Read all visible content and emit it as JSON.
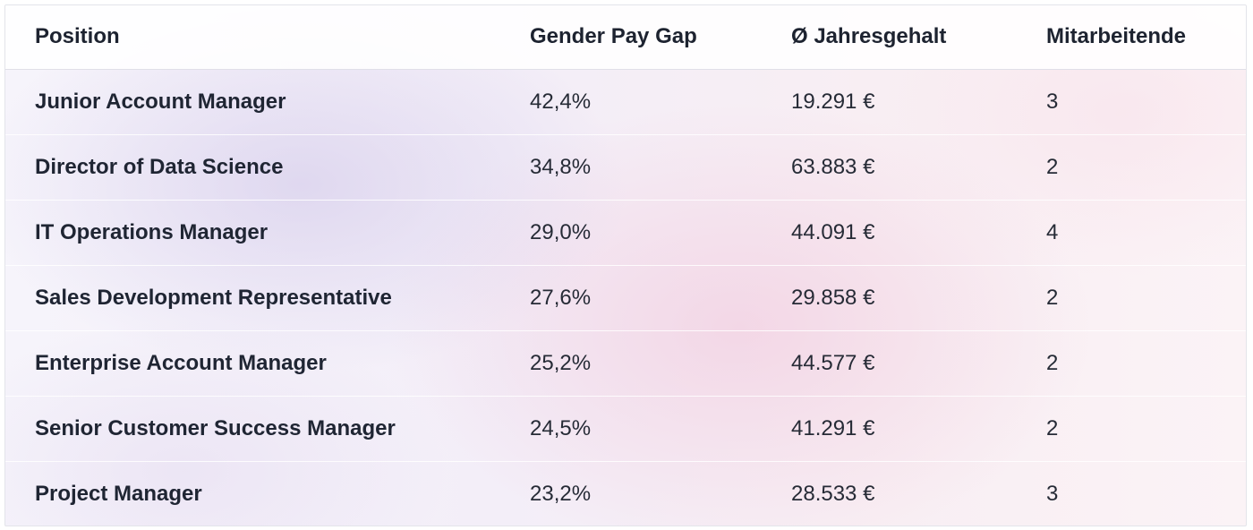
{
  "table": {
    "headers": {
      "position": "Position",
      "gap": "Gender Pay Gap",
      "salary": "Ø Jahresgehalt",
      "count": "Mitarbeitende"
    },
    "rows": [
      {
        "position": "Junior Account Manager",
        "gap": "42,4%",
        "salary": "19.291 €",
        "count": "3"
      },
      {
        "position": "Director of Data Science",
        "gap": "34,8%",
        "salary": "63.883 €",
        "count": "2"
      },
      {
        "position": "IT Operations Manager",
        "gap": "29,0%",
        "salary": "44.091 €",
        "count": "4"
      },
      {
        "position": "Sales Development Representative",
        "gap": "27,6%",
        "salary": "29.858 €",
        "count": "2"
      },
      {
        "position": "Enterprise Account Manager",
        "gap": "25,2%",
        "salary": "44.577 €",
        "count": "2"
      },
      {
        "position": "Senior Customer Success Manager",
        "gap": "24,5%",
        "salary": "41.291 €",
        "count": "2"
      },
      {
        "position": "Project Manager",
        "gap": "23,2%",
        "salary": "28.533 €",
        "count": "3"
      }
    ]
  }
}
